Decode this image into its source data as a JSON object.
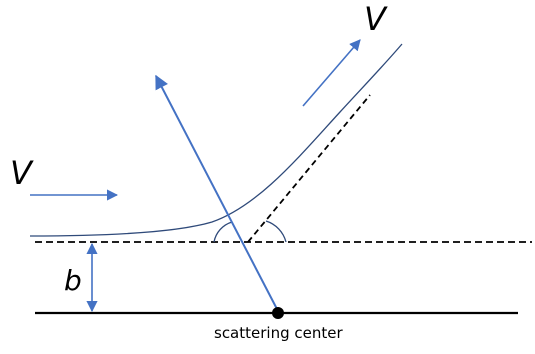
{
  "labels": {
    "velocity_in": "V",
    "velocity_out": "V",
    "impact_parameter": "b",
    "scattering_center": "scattering center"
  },
  "colors": {
    "arrow_blue": "#4472c4",
    "trajectory_navy": "#2f4a7a",
    "line_black": "#000000"
  }
}
